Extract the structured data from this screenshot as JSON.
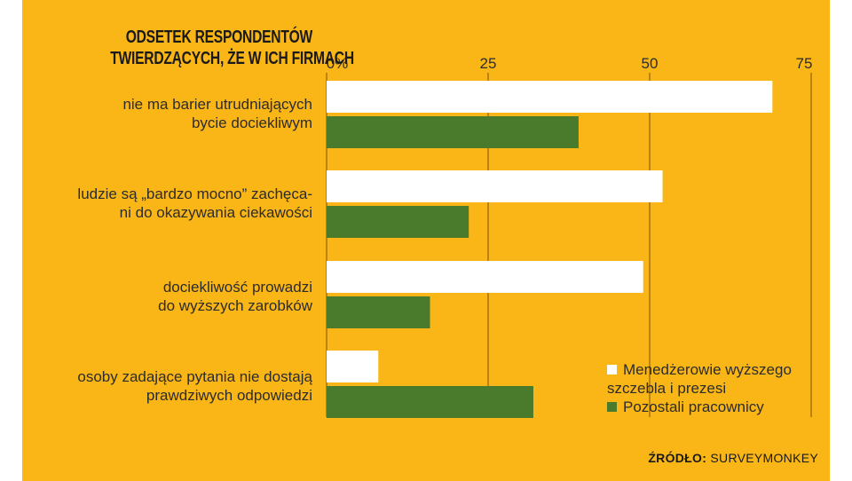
{
  "chart_data": {
    "type": "bar",
    "orientation": "horizontal",
    "title_lines": [
      "ODSETEK RESPONDENTÓW",
      "TWIERDZĄCYCH, ŻE W ICH FIRMACH"
    ],
    "x_ticks": [
      "0%",
      "25",
      "50",
      "75"
    ],
    "xlim": [
      0,
      75
    ],
    "categories": [
      [
        "nie ma barier utrudniających",
        "bycie dociekliwym"
      ],
      [
        "ludzie są „bardzo mocno” zachęca-",
        "ni do okazywania ciekawości"
      ],
      [
        "dociekliwość prowadzi",
        "do wyższych zarobków"
      ],
      [
        "osoby zadające pytania nie dostają",
        "prawdziwych odpowiedzi"
      ]
    ],
    "series": [
      {
        "name": "Menedżerowie wyższego szczebla i prezesi",
        "color": "#ffffff",
        "values": [
          69,
          52,
          49,
          8
        ]
      },
      {
        "name": "Pozostali pracownicy",
        "color": "#4a7a2b",
        "values": [
          39,
          22,
          16,
          32
        ]
      }
    ],
    "legend": {
      "position": "bottom-right",
      "items": [
        {
          "lines": [
            "Menedżerowie wyższego",
            "szczebla i prezesi"
          ],
          "color": "#ffffff"
        },
        {
          "lines": [
            "Pozostali pracownicy"
          ],
          "color": "#4a7a2b"
        }
      ]
    },
    "grid": true,
    "source_label": "ŹRÓDŁO:",
    "source_text": "SURVEYMONKEY"
  },
  "colors": {
    "background": "#f9b616",
    "gridline": "#a27408"
  }
}
